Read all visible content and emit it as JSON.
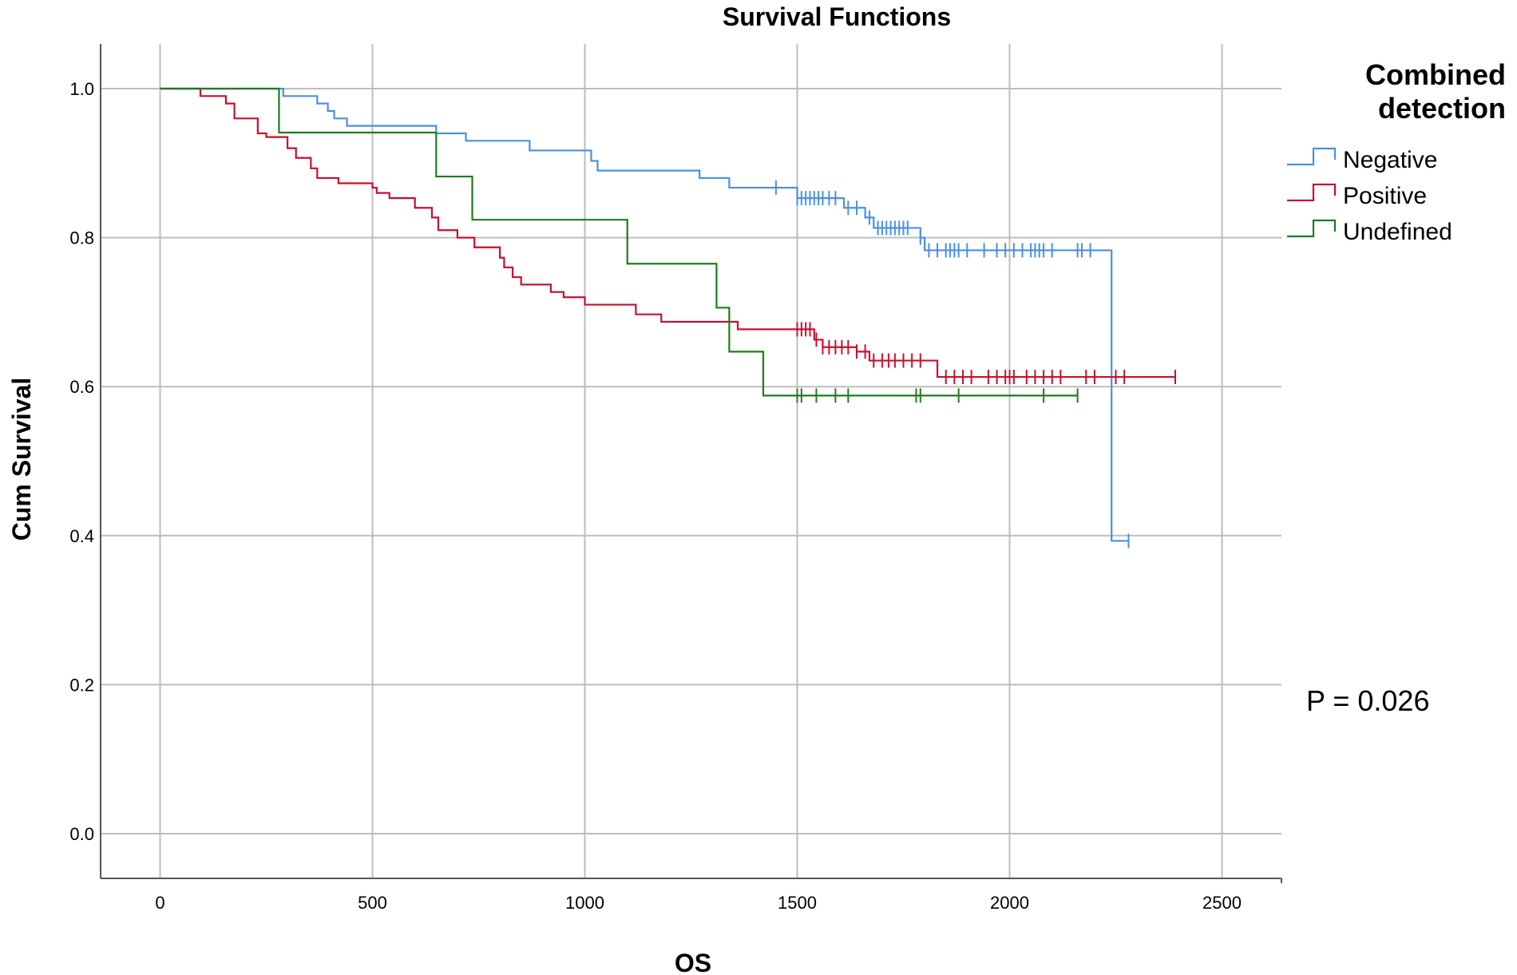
{
  "chart_data": {
    "type": "line",
    "step": true,
    "title": "Survival Functions",
    "xlabel": "OS",
    "ylabel": "Cum Survival",
    "xlim": [
      -140,
      2640
    ],
    "ylim": [
      -0.06,
      1.06
    ],
    "xticks": [
      0,
      500,
      1000,
      1500,
      2000,
      2500
    ],
    "yticks": [
      0.0,
      0.2,
      0.4,
      0.6,
      0.8,
      1.0
    ],
    "xtick_labels": [
      "0",
      "500",
      "1000",
      "1500",
      "2000",
      "2500"
    ],
    "ytick_labels": [
      "0.0",
      "0.2",
      "0.4",
      "0.6",
      "0.8",
      "1.0"
    ],
    "grid": true,
    "legend": {
      "title_lines": [
        "Combined",
        "detection"
      ],
      "position": "top-right"
    },
    "annotation": "P = 0.026",
    "series": [
      {
        "name": "Negative",
        "color": "#4A90E2",
        "steps": [
          [
            0,
            1.0
          ],
          [
            290,
            0.99
          ],
          [
            370,
            0.98
          ],
          [
            395,
            0.97
          ],
          [
            410,
            0.96
          ],
          [
            440,
            0.95
          ],
          [
            650,
            0.94
          ],
          [
            720,
            0.93
          ],
          [
            870,
            0.917
          ],
          [
            1015,
            0.903
          ],
          [
            1030,
            0.89
          ],
          [
            1270,
            0.88
          ],
          [
            1340,
            0.867
          ],
          [
            1500,
            0.853
          ],
          [
            1610,
            0.84
          ],
          [
            1660,
            0.827
          ],
          [
            1680,
            0.813
          ],
          [
            1790,
            0.8
          ],
          [
            1800,
            0.783
          ],
          [
            2240,
            0.393
          ],
          [
            2280,
            0.393
          ]
        ],
        "censor_times": [
          1450,
          1500,
          1510,
          1520,
          1530,
          1540,
          1550,
          1560,
          1575,
          1590,
          1620,
          1640,
          1670,
          1690,
          1700,
          1710,
          1720,
          1730,
          1740,
          1750,
          1760,
          1790,
          1810,
          1830,
          1850,
          1860,
          1870,
          1880,
          1900,
          1940,
          1970,
          1990,
          2010,
          2030,
          2050,
          2060,
          2070,
          2080,
          2100,
          2160,
          2170,
          2190,
          2280
        ]
      },
      {
        "name": "Positive",
        "color": "#C8102E",
        "steps": [
          [
            0,
            1.0
          ],
          [
            95,
            0.99
          ],
          [
            155,
            0.98
          ],
          [
            175,
            0.96
          ],
          [
            230,
            0.94
          ],
          [
            250,
            0.935
          ],
          [
            300,
            0.92
          ],
          [
            320,
            0.907
          ],
          [
            355,
            0.893
          ],
          [
            370,
            0.88
          ],
          [
            420,
            0.873
          ],
          [
            500,
            0.867
          ],
          [
            510,
            0.86
          ],
          [
            540,
            0.853
          ],
          [
            600,
            0.84
          ],
          [
            640,
            0.827
          ],
          [
            655,
            0.81
          ],
          [
            700,
            0.8
          ],
          [
            740,
            0.787
          ],
          [
            800,
            0.773
          ],
          [
            810,
            0.76
          ],
          [
            830,
            0.747
          ],
          [
            850,
            0.737
          ],
          [
            920,
            0.727
          ],
          [
            950,
            0.72
          ],
          [
            1000,
            0.71
          ],
          [
            1120,
            0.697
          ],
          [
            1180,
            0.687
          ],
          [
            1360,
            0.677
          ],
          [
            1540,
            0.663
          ],
          [
            1560,
            0.653
          ],
          [
            1640,
            0.647
          ],
          [
            1670,
            0.635
          ],
          [
            1830,
            0.613
          ],
          [
            2390,
            0.613
          ]
        ],
        "censor_times": [
          1500,
          1510,
          1520,
          1530,
          1545,
          1560,
          1575,
          1590,
          1605,
          1620,
          1640,
          1660,
          1680,
          1700,
          1715,
          1730,
          1750,
          1770,
          1790,
          1850,
          1870,
          1890,
          1910,
          1950,
          1970,
          1990,
          2000,
          2010,
          2040,
          2060,
          2080,
          2100,
          2120,
          2180,
          2200,
          2250,
          2270,
          2390
        ]
      },
      {
        "name": "Undefined",
        "color": "#1E7B1E",
        "steps": [
          [
            0,
            1.0
          ],
          [
            280,
            0.941
          ],
          [
            650,
            0.882
          ],
          [
            735,
            0.824
          ],
          [
            1100,
            0.765
          ],
          [
            1310,
            0.706
          ],
          [
            1340,
            0.647
          ],
          [
            1420,
            0.588
          ],
          [
            2160,
            0.588
          ]
        ],
        "censor_times": [
          1500,
          1510,
          1545,
          1590,
          1620,
          1780,
          1790,
          1880,
          2080,
          2160
        ]
      }
    ]
  }
}
